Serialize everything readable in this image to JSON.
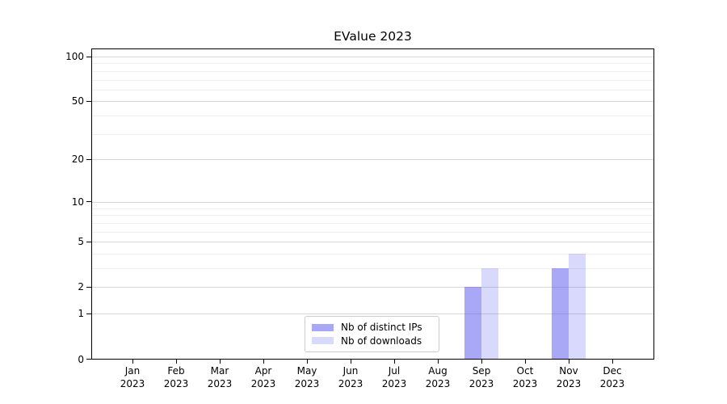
{
  "chart_data": {
    "type": "bar",
    "title": "EValue 2023",
    "categories": [
      "Jan 2023",
      "Feb 2023",
      "Mar 2023",
      "Apr 2023",
      "May 2023",
      "Jun 2023",
      "Jul 2023",
      "Aug 2023",
      "Sep 2023",
      "Oct 2023",
      "Nov 2023",
      "Dec 2023"
    ],
    "month_labels": [
      "Jan",
      "Feb",
      "Mar",
      "Apr",
      "May",
      "Jun",
      "Jul",
      "Aug",
      "Sep",
      "Oct",
      "Nov",
      "Dec"
    ],
    "year_label": "2023",
    "series": [
      {
        "name": "Nb of distinct IPs",
        "color": "rgba(82,82,240,0.5)",
        "values": [
          0,
          0,
          0,
          0,
          0,
          0,
          0,
          0,
          2,
          0,
          3,
          0
        ]
      },
      {
        "name": "Nb of downloads",
        "color": "rgba(82,82,240,0.22)",
        "values": [
          0,
          0,
          0,
          0,
          0,
          0,
          0,
          0,
          3,
          0,
          4,
          0
        ]
      }
    ],
    "y_axis": {
      "scale": "log1p",
      "major_ticks": [
        0,
        1,
        2,
        5,
        10,
        20,
        50,
        100
      ],
      "minor_ticks": [
        3,
        4,
        6,
        7,
        8,
        9,
        30,
        40,
        60,
        70,
        80,
        90
      ],
      "range": [
        0,
        113
      ]
    },
    "xlabel": "",
    "ylabel": "",
    "legend": {
      "position": "lower center"
    },
    "grid": {
      "major_color": "#d7d7d7",
      "minor_color": "#efefef"
    },
    "axis_color": "#000000",
    "background_color": "#ffffff"
  }
}
